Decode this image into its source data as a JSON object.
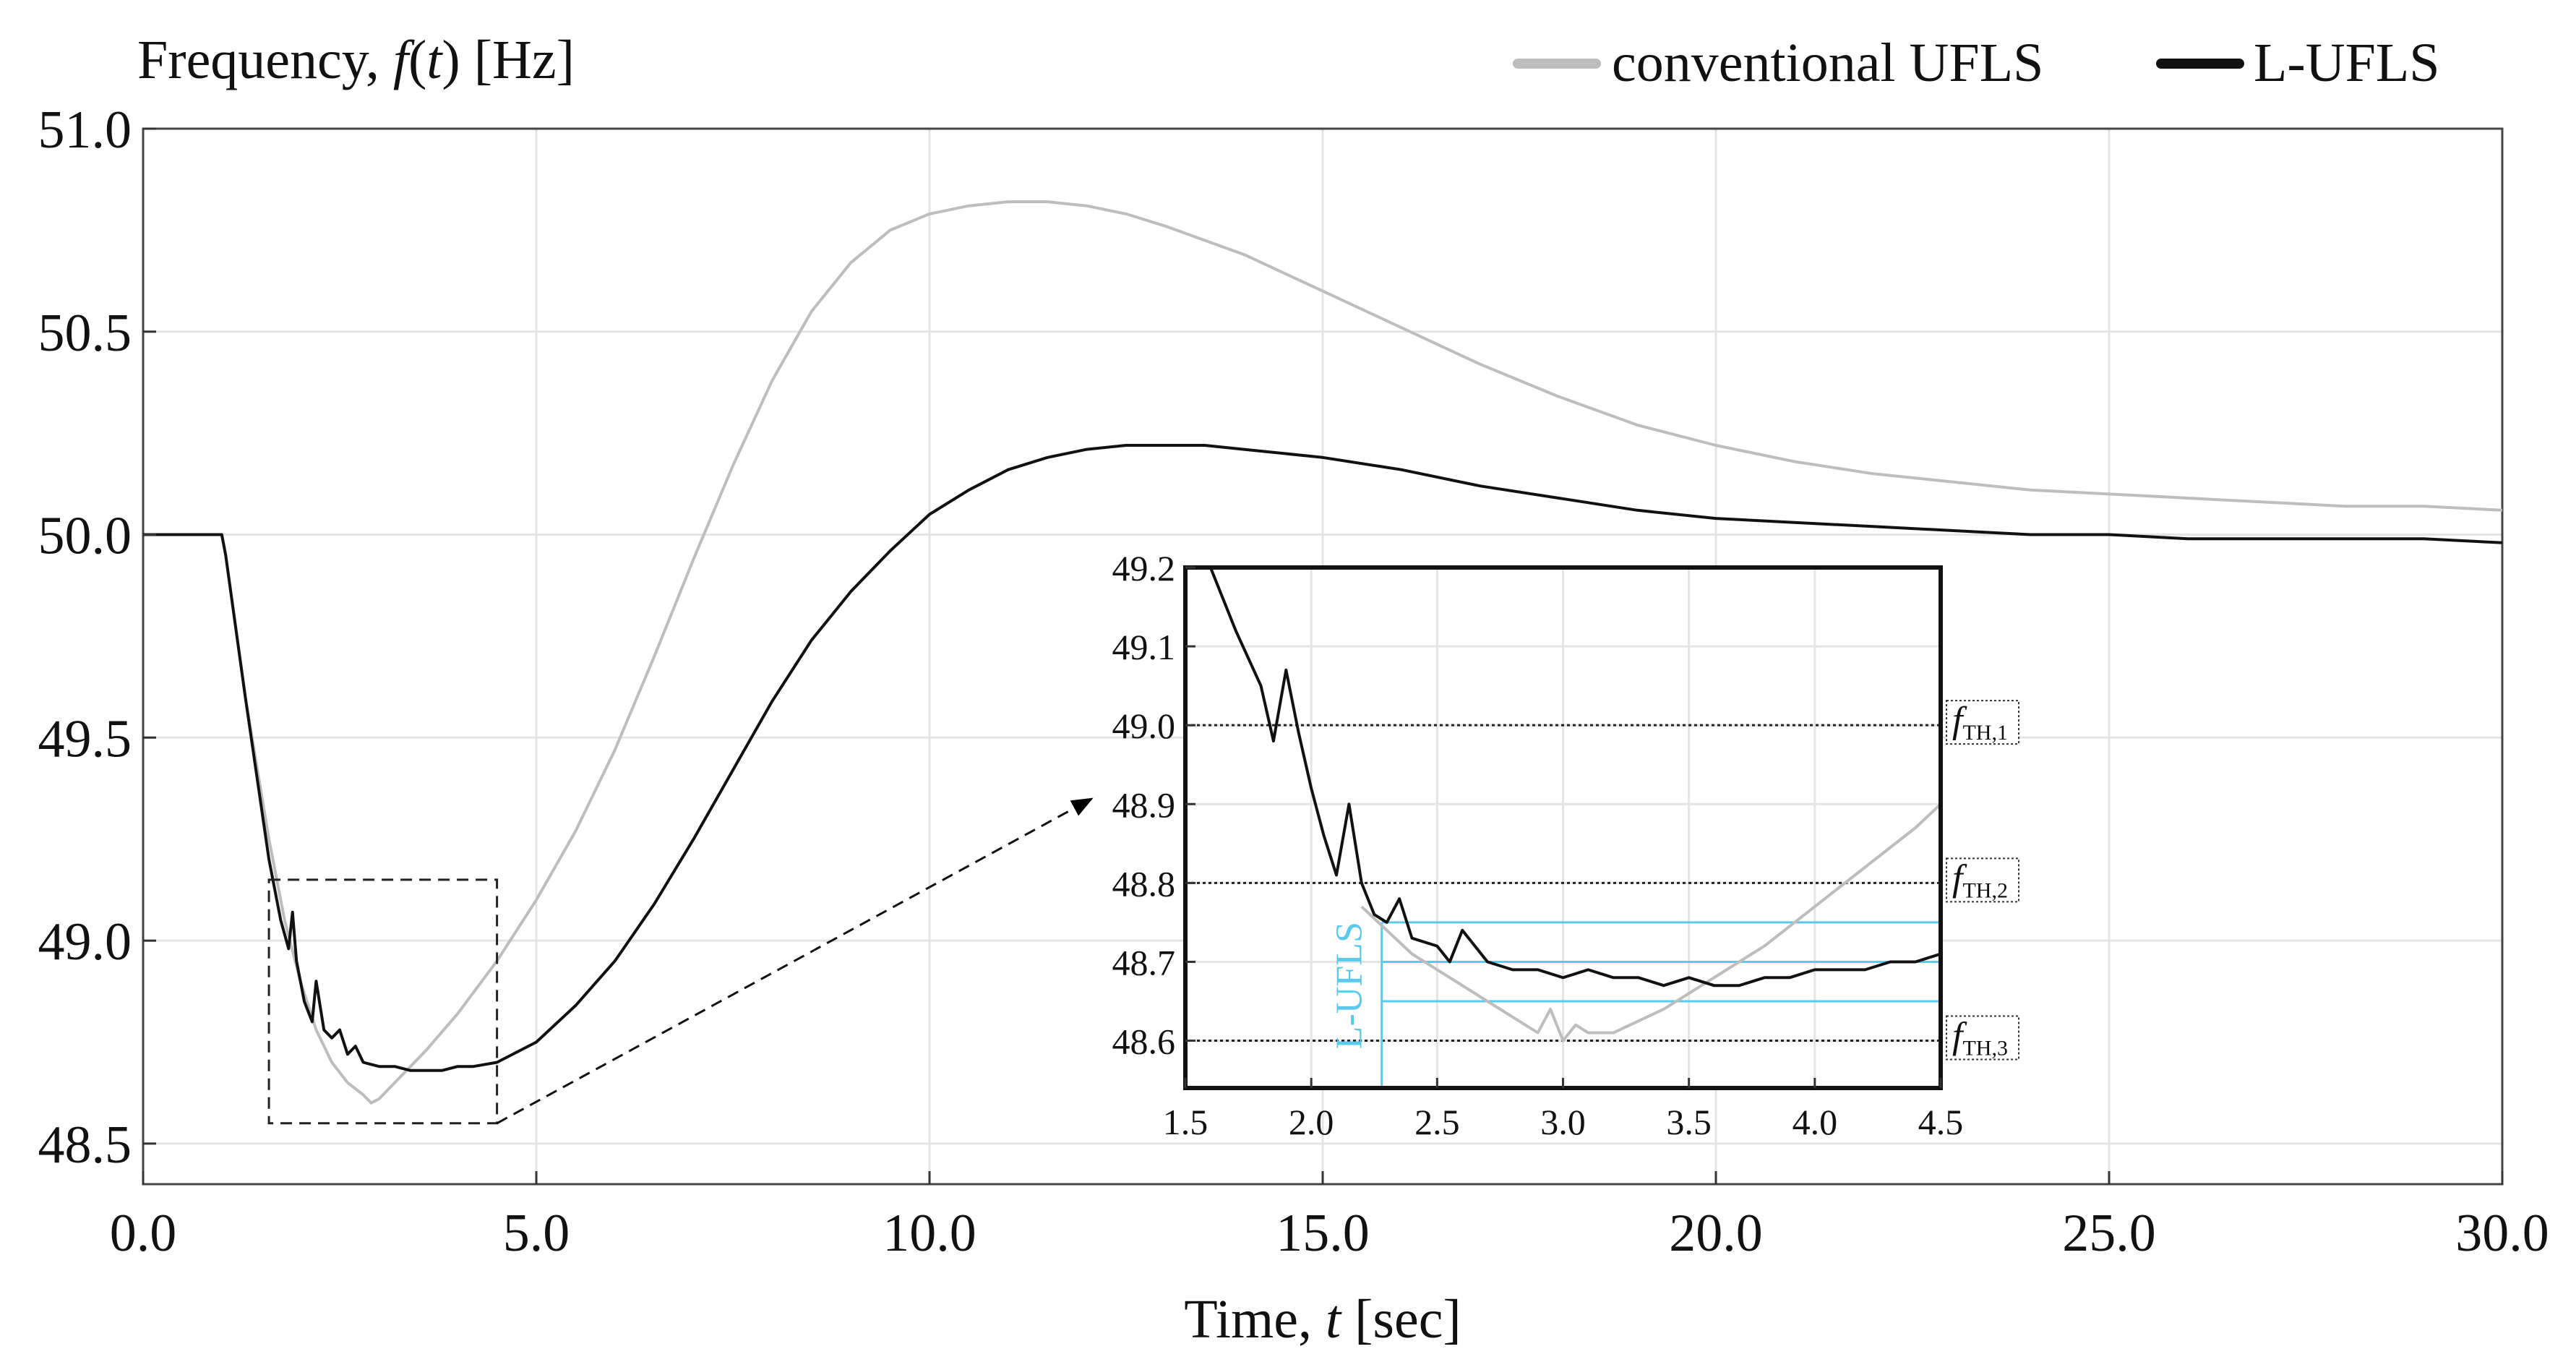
{
  "colors": {
    "conventional": "#bdbdbd",
    "lufls": "#111111",
    "grid": "#e4e4e4",
    "threshold": "#222222",
    "band": "#5bc8ec",
    "axis": "#333333"
  },
  "chart_data": [
    {
      "type": "line",
      "id": "main",
      "title": "",
      "ylabel_prefix": "Frequency, ",
      "ylabel_fn": "f",
      "ylabel_paren_open": "(",
      "ylabel_var": "t",
      "ylabel_suffix": ") [Hz]",
      "xlabel_prefix": "Time, ",
      "xlabel_var": "t",
      "xlabel_suffix": " [sec]",
      "xlim": [
        0,
        30
      ],
      "ylim": [
        48.4,
        51.0
      ],
      "xticks": [
        0,
        5,
        10,
        15,
        20,
        25,
        30
      ],
      "xtick_labels": [
        "0.0",
        "5.0",
        "10.0",
        "15.0",
        "20.0",
        "25.0",
        "30.0"
      ],
      "yticks": [
        48.5,
        49.0,
        49.5,
        50.0,
        50.5,
        51.0
      ],
      "ytick_labels": [
        "48.5",
        "49.0",
        "49.5",
        "50.0",
        "50.5",
        "51.0"
      ],
      "grid": true,
      "legend": {
        "position": "top-right",
        "entries": [
          {
            "key": "conventional",
            "label": "conventional UFLS"
          },
          {
            "key": "lufls",
            "label": "L-UFLS"
          }
        ]
      },
      "series": [
        {
          "name": "conventional UFLS",
          "key": "conventional",
          "x": [
            0,
            1.0,
            1.05,
            1.3,
            1.6,
            1.8,
            2.0,
            2.2,
            2.4,
            2.6,
            2.8,
            2.9,
            3.0,
            3.1,
            3.3,
            3.6,
            4.0,
            4.5,
            5.0,
            5.5,
            6.0,
            6.5,
            7.0,
            7.5,
            8.0,
            8.5,
            9.0,
            9.5,
            10.0,
            10.5,
            11.0,
            11.5,
            12.0,
            12.5,
            13.0,
            14.0,
            15.0,
            16.0,
            17.0,
            18.0,
            19.0,
            20.0,
            21.0,
            22.0,
            23.0,
            24.0,
            25.0,
            26.0,
            27.0,
            28.0,
            29.0,
            30.0
          ],
          "y": [
            50.0,
            50.0,
            49.95,
            49.6,
            49.25,
            49.05,
            48.9,
            48.78,
            48.7,
            48.65,
            48.62,
            48.6,
            48.61,
            48.63,
            48.67,
            48.73,
            48.82,
            48.95,
            49.1,
            49.27,
            49.47,
            49.7,
            49.94,
            50.17,
            50.38,
            50.55,
            50.67,
            50.75,
            50.79,
            50.81,
            50.82,
            50.82,
            50.81,
            50.79,
            50.76,
            50.69,
            50.6,
            50.51,
            50.42,
            50.34,
            50.27,
            50.22,
            50.18,
            50.15,
            50.13,
            50.11,
            50.1,
            50.09,
            50.08,
            50.07,
            50.07,
            50.06
          ]
        },
        {
          "name": "L-UFLS",
          "key": "lufls",
          "x": [
            0,
            1.0,
            1.05,
            1.3,
            1.6,
            1.75,
            1.85,
            1.9,
            1.95,
            2.05,
            2.15,
            2.2,
            2.3,
            2.4,
            2.5,
            2.6,
            2.7,
            2.8,
            3.0,
            3.2,
            3.4,
            3.6,
            3.8,
            4.0,
            4.2,
            4.5,
            5.0,
            5.5,
            6.0,
            6.5,
            7.0,
            7.5,
            8.0,
            8.5,
            9.0,
            9.5,
            10.0,
            10.5,
            11.0,
            11.5,
            12.0,
            12.5,
            13.0,
            13.5,
            14.0,
            15.0,
            16.0,
            17.0,
            18.0,
            19.0,
            20.0,
            21.0,
            22.0,
            23.0,
            24.0,
            25.0,
            26.0,
            27.0,
            28.0,
            29.0,
            30.0
          ],
          "y": [
            50.0,
            50.0,
            49.95,
            49.6,
            49.2,
            49.05,
            48.98,
            49.07,
            48.95,
            48.85,
            48.8,
            48.9,
            48.78,
            48.76,
            48.78,
            48.72,
            48.74,
            48.7,
            48.69,
            48.69,
            48.68,
            48.68,
            48.68,
            48.69,
            48.69,
            48.7,
            48.75,
            48.84,
            48.95,
            49.09,
            49.25,
            49.42,
            49.59,
            49.74,
            49.86,
            49.96,
            50.05,
            50.11,
            50.16,
            50.19,
            50.21,
            50.22,
            50.22,
            50.22,
            50.21,
            50.19,
            50.16,
            50.12,
            50.09,
            50.06,
            50.04,
            50.03,
            50.02,
            50.01,
            50.0,
            50.0,
            49.99,
            49.99,
            49.99,
            49.99,
            49.98
          ]
        }
      ],
      "zoom_box": {
        "x": [
          1.6,
          4.5
        ],
        "y": [
          48.55,
          49.15
        ]
      }
    },
    {
      "type": "line",
      "id": "inset",
      "title": "",
      "xlim": [
        1.5,
        4.5
      ],
      "ylim": [
        48.54,
        49.2
      ],
      "xticks": [
        1.5,
        2.0,
        2.5,
        3.0,
        3.5,
        4.0,
        4.5
      ],
      "xtick_labels": [
        "1.5",
        "2.0",
        "2.5",
        "3.0",
        "3.5",
        "4.0",
        "4.5"
      ],
      "yticks": [
        48.6,
        48.7,
        48.8,
        48.9,
        49.0,
        49.1,
        49.2
      ],
      "ytick_labels": [
        "48.6",
        "48.7",
        "48.8",
        "48.9",
        "49.0",
        "49.1",
        "49.2"
      ],
      "grid": true,
      "thresholds": [
        {
          "value": 49.0,
          "label_main": "f",
          "label_sub": "TH,1"
        },
        {
          "value": 48.8,
          "label_main": "f",
          "label_sub": "TH,2"
        },
        {
          "value": 48.6,
          "label_main": "f",
          "label_sub": "TH,3"
        }
      ],
      "band": {
        "label": "L-UFLS",
        "x_start": 2.28,
        "levels": [
          48.75,
          48.7,
          48.65
        ]
      },
      "series": [
        {
          "name": "conventional UFLS",
          "key": "conventional",
          "x": [
            2.2,
            2.4,
            2.6,
            2.8,
            2.9,
            2.95,
            3.0,
            3.05,
            3.1,
            3.2,
            3.4,
            3.6,
            3.8,
            4.0,
            4.2,
            4.4,
            4.5
          ],
          "y": [
            48.77,
            48.71,
            48.67,
            48.63,
            48.61,
            48.64,
            48.6,
            48.62,
            48.61,
            48.61,
            48.64,
            48.68,
            48.72,
            48.77,
            48.82,
            48.87,
            48.9
          ]
        },
        {
          "name": "L-UFLS",
          "key": "lufls",
          "x": [
            1.6,
            1.7,
            1.8,
            1.85,
            1.9,
            1.95,
            2.0,
            2.05,
            2.1,
            2.15,
            2.2,
            2.25,
            2.3,
            2.35,
            2.4,
            2.5,
            2.55,
            2.6,
            2.7,
            2.8,
            2.9,
            3.0,
            3.1,
            3.2,
            3.3,
            3.4,
            3.5,
            3.6,
            3.7,
            3.8,
            3.9,
            4.0,
            4.1,
            4.2,
            4.3,
            4.4,
            4.5
          ],
          "y": [
            49.2,
            49.12,
            49.05,
            48.98,
            49.07,
            48.99,
            48.92,
            48.86,
            48.81,
            48.9,
            48.8,
            48.76,
            48.75,
            48.78,
            48.73,
            48.72,
            48.7,
            48.74,
            48.7,
            48.69,
            48.69,
            48.68,
            48.69,
            48.68,
            48.68,
            48.67,
            48.68,
            48.67,
            48.67,
            48.68,
            48.68,
            48.69,
            48.69,
            48.69,
            48.7,
            48.7,
            48.71
          ]
        }
      ]
    }
  ]
}
